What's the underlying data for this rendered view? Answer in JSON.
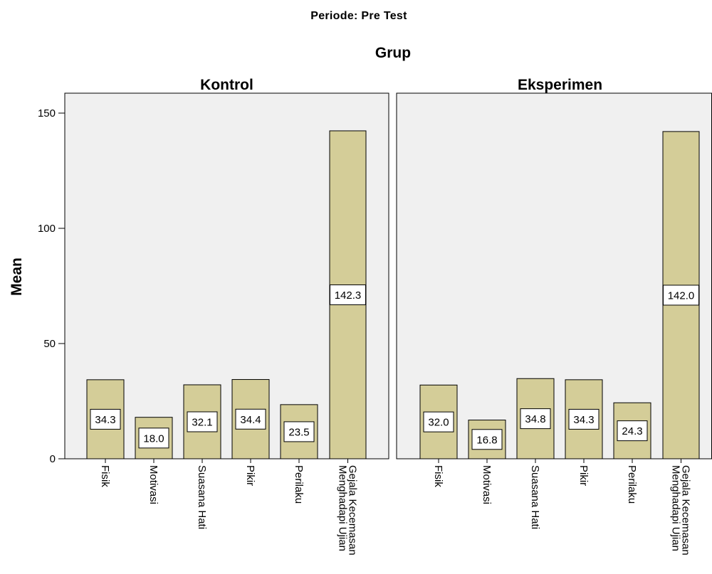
{
  "header": {
    "periode": "Periode: Pre Test",
    "facet_title": "Grup"
  },
  "chart_data": {
    "type": "bar",
    "title": "Periode: Pre Test",
    "facet_label": "Grup",
    "ylabel": "Mean",
    "ylim": [
      0,
      150
    ],
    "yticks": [
      0,
      50,
      100,
      150
    ],
    "grid": false,
    "categories": [
      [
        "Fisik"
      ],
      [
        "Motivasi"
      ],
      [
        "Suasana Hati"
      ],
      [
        "Pikir"
      ],
      [
        "Perilaku"
      ],
      [
        "Gejala Kecemasan",
        "Menghadapi Ujian"
      ]
    ],
    "colors": {
      "bar_fill": "#d4cd98",
      "bar_stroke": "#000000",
      "panel_bg": "#f0f0f0"
    },
    "panels": [
      {
        "name": "Kontrol",
        "values": [
          34.3,
          18.0,
          32.1,
          34.4,
          23.5,
          142.3
        ],
        "labels": [
          "34.3",
          "18.0",
          "32.1",
          "34.4",
          "23.5",
          "142.3"
        ]
      },
      {
        "name": "Eksperimen",
        "values": [
          32.0,
          16.8,
          34.8,
          34.3,
          24.3,
          142.0
        ],
        "labels": [
          "32.0",
          "16.8",
          "34.8",
          "34.3",
          "24.3",
          "142.0"
        ]
      }
    ]
  }
}
